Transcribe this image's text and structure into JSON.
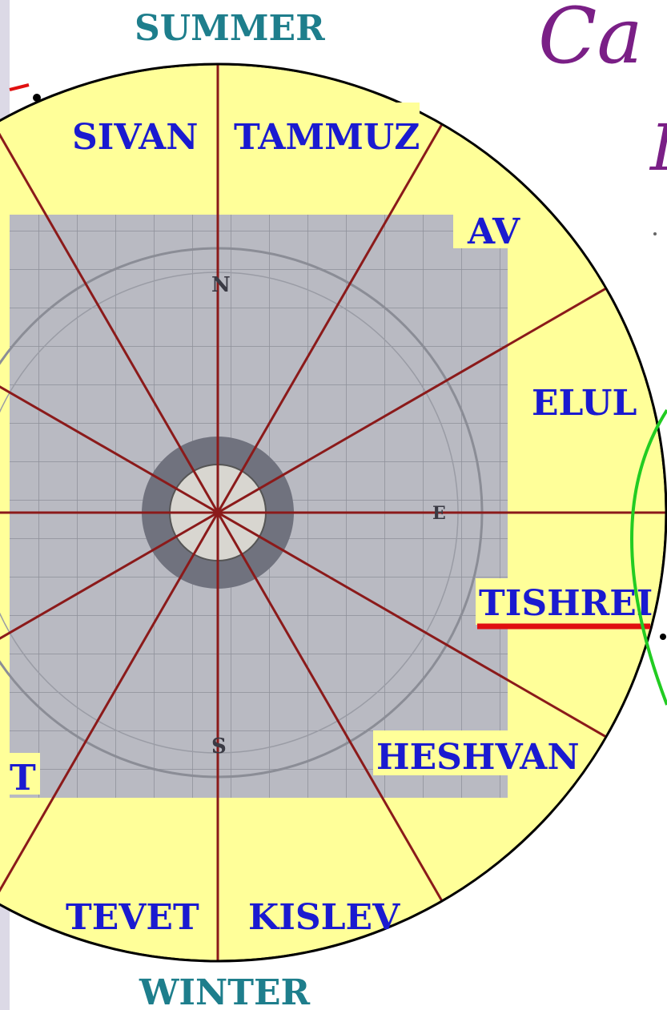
{
  "diagram": {
    "season_top": "SUMMER",
    "season_bottom": "WINTER",
    "title_fragment": "Ca",
    "title_fragment_2": "I",
    "months": {
      "sivan": "SIVAN",
      "tammuz": "TAMMUZ",
      "av": "AV",
      "elul": "ELUL",
      "tishrei": "TISHREI",
      "heshvan": "HESHVAN",
      "kislev": "KISLEV",
      "tevet": "TEVET",
      "shevat_partial": "T"
    },
    "compass": {
      "north": "N",
      "south": "S",
      "east": "E"
    },
    "colors": {
      "disc_fill": "#ffff99",
      "spokes": "#8b1a1a",
      "month_text": "#1a1ad0",
      "season_text": "#1e7e8c",
      "underline": "#e01010",
      "arc_green": "#22cc22"
    }
  }
}
